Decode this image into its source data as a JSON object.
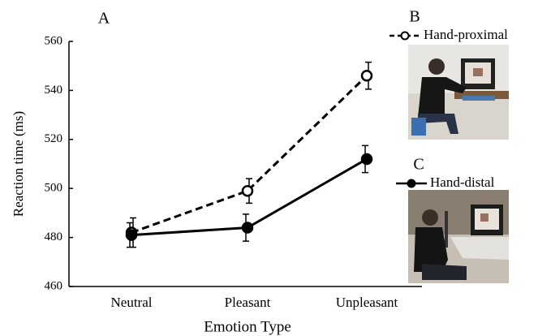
{
  "chart_data": {
    "type": "line",
    "panel_labels": [
      "A",
      "B",
      "C"
    ],
    "xlabel": "Emotion Type",
    "ylabel": "Reaction time (ms)",
    "categories": [
      "Neutral",
      "Pleasant",
      "Unpleasant"
    ],
    "ylim": [
      460,
      560
    ],
    "yticks": [
      460,
      480,
      500,
      520,
      540,
      560
    ],
    "series": [
      {
        "name": "Hand-proximal",
        "color": "#000000",
        "line_style": "dashed",
        "marker_fill": "open",
        "values": [
          482,
          499,
          546
        ],
        "errors": [
          6,
          5,
          5.5
        ]
      },
      {
        "name": "Hand-distal",
        "color": "#000000",
        "line_style": "solid",
        "marker_fill": "filled",
        "values": [
          481,
          484,
          512
        ],
        "errors": [
          5,
          5.5,
          5.5
        ]
      }
    ]
  }
}
